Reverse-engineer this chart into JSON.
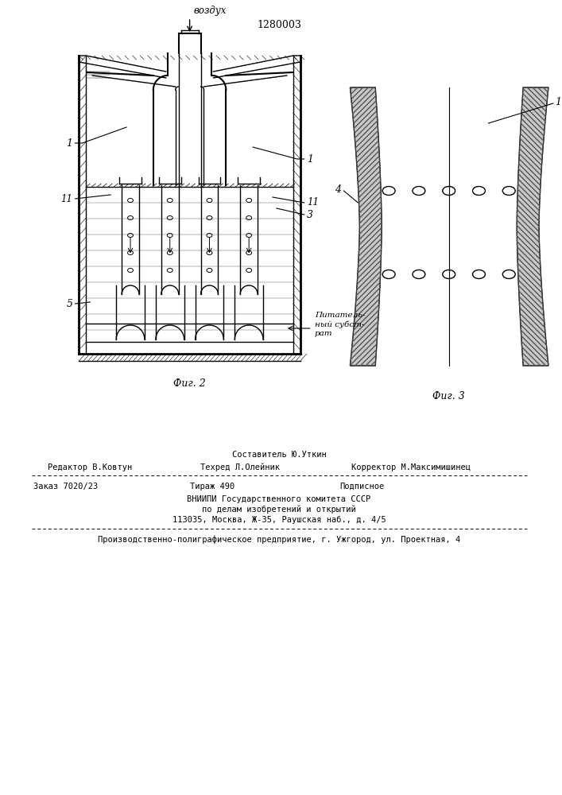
{
  "patent_number": "1280003",
  "fig2_label": "Фиг. 2",
  "fig3_label": "Фиг. 3",
  "vozdukh_label": "воздух",
  "label_1_left": "1",
  "label_1_right": "1",
  "label_11_left": "11",
  "label_11_right": "11",
  "label_3": "3",
  "label_5": "5",
  "label_4": "4",
  "label_1_fig3": "1",
  "pitatelny_substrat": "Питатель-\nный субст-\nрат",
  "line_color": "#000000",
  "bg_color": "#ffffff",
  "text_line1": "Составитель Ю.Уткин",
  "text_line2_left": "Редактор В.Ковтун",
  "text_line2_mid": "Техред Л.Олейник",
  "text_line2_right": "Корректор М.Максимишинец",
  "text_line3a": "Заказ 7020/23",
  "text_line3b": "Тираж 490",
  "text_line3c": "Подписное",
  "text_line4": "ВНИИПИ Государственного комитета СССР",
  "text_line5": "по делам изобретений и открытий",
  "text_line6": "113035, Москва, Ж-35, Раушская наб., д. 4/5",
  "text_line7": "Производственно-полиграфическое предприятие, г. Ужгород, ул. Проектная, 4"
}
